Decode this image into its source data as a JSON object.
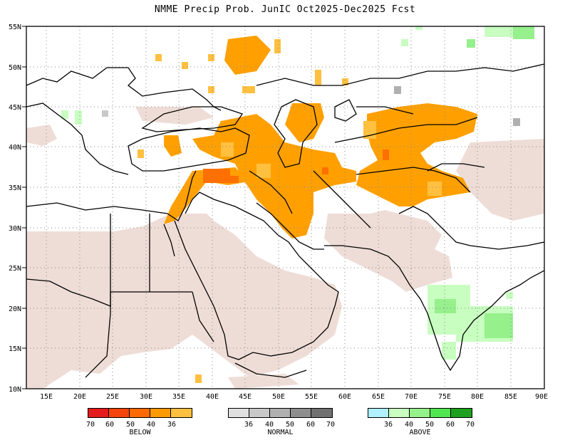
{
  "title": "NMME Precip Prob. JunIC  Oct2025-Dec2025 Fcst",
  "lat_labels": [
    "55N",
    "50N",
    "45N",
    "40N",
    "35N",
    "30N",
    "25N",
    "20N",
    "15N",
    "10N"
  ],
  "lon_labels": [
    "15E",
    "20E",
    "25E",
    "30E",
    "35E",
    "40E",
    "45E",
    "50E",
    "55E",
    "60E",
    "65E",
    "70E",
    "75E",
    "80E",
    "85E",
    "90E"
  ],
  "colors": {
    "below_mask": "#eeddd6",
    "below": [
      "#e41a1c",
      "#f5450c",
      "#ff6a00",
      "#ff9a00",
      "#ffc040"
    ],
    "normal": [
      "#e0e0e0",
      "#c8c8c8",
      "#b0b0b0",
      "#8e8e8e",
      "#707070"
    ],
    "above": [
      "#b0f0ff",
      "#c8ffc0",
      "#96f08c",
      "#50e650",
      "#1ea01e"
    ],
    "land": "#000000"
  },
  "legends": {
    "below": {
      "label": "BELOW",
      "ticks": [
        "70",
        "60",
        "50",
        "40",
        "36"
      ]
    },
    "normal": {
      "label": "NORMAL",
      "ticks": [
        "36",
        "40",
        "50",
        "60",
        "70"
      ]
    },
    "above": {
      "label": "ABOVE",
      "ticks": [
        "36",
        "40",
        "50",
        "60",
        "70"
      ]
    }
  },
  "map_extent": {
    "lon": [
      12,
      90
    ],
    "lat": [
      10,
      55
    ]
  }
}
